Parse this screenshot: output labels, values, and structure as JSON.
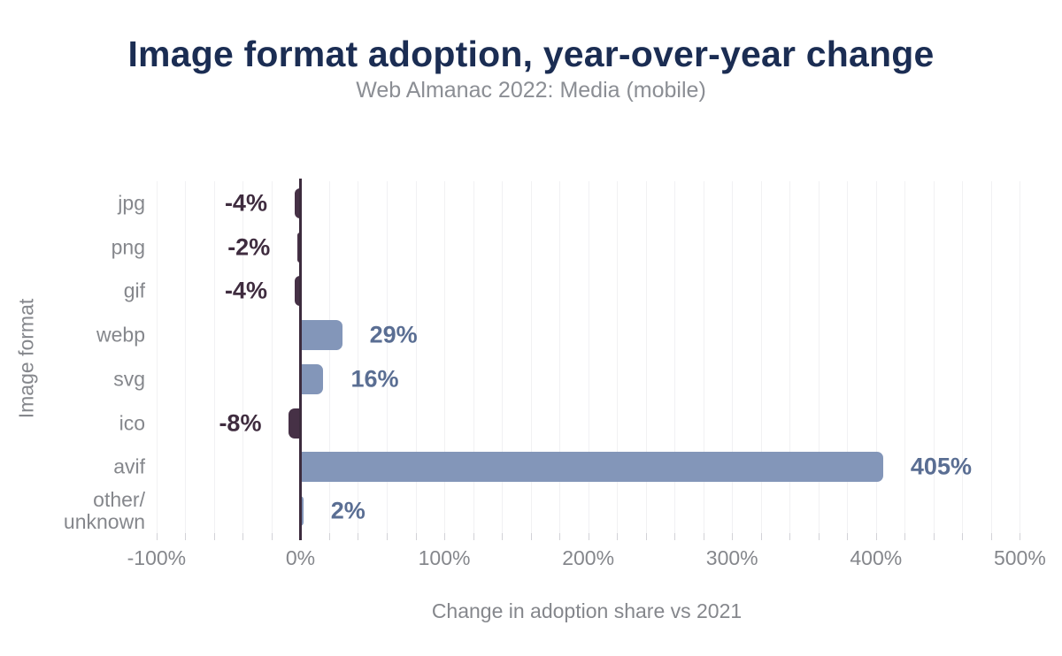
{
  "colors": {
    "title_text": "#1b2d53",
    "subtitle_text": "#8b8e94",
    "axis_text": "#85878c",
    "positive_bar": "#8396b9",
    "negative_bar": "#463146",
    "positive_label": "#5a6e93",
    "negative_label": "#3f2c3f",
    "zero_line": "#3c2b3d",
    "gridline": "#f1f1f3",
    "tick": "#d2d2d7"
  },
  "chart_data": {
    "type": "bar",
    "orientation": "horizontal",
    "title": "Image format adoption, year-over-year change",
    "subtitle": "Web Almanac 2022: Media (mobile)",
    "categories": [
      "jpg",
      "png",
      "gif",
      "webp",
      "svg",
      "ico",
      "avif",
      "other/\nunknown"
    ],
    "values": [
      -4,
      -2,
      -4,
      29,
      16,
      -8,
      405,
      2
    ],
    "value_labels": [
      "-4%",
      "-2%",
      "-4%",
      "29%",
      "16%",
      "-8%",
      "405%",
      "2%"
    ],
    "xlabel": "Change in adoption share vs 2021",
    "ylabel": "Image format",
    "xlim": [
      -103,
      501
    ],
    "x_ticks": [
      -100,
      0,
      100,
      200,
      300,
      400,
      500
    ],
    "x_tick_labels": [
      "-100%",
      "0%",
      "100%",
      "200%",
      "300%",
      "400%",
      "500%"
    ],
    "grid_step": 20,
    "grid_range": [
      -100,
      500
    ],
    "legend": "none"
  }
}
